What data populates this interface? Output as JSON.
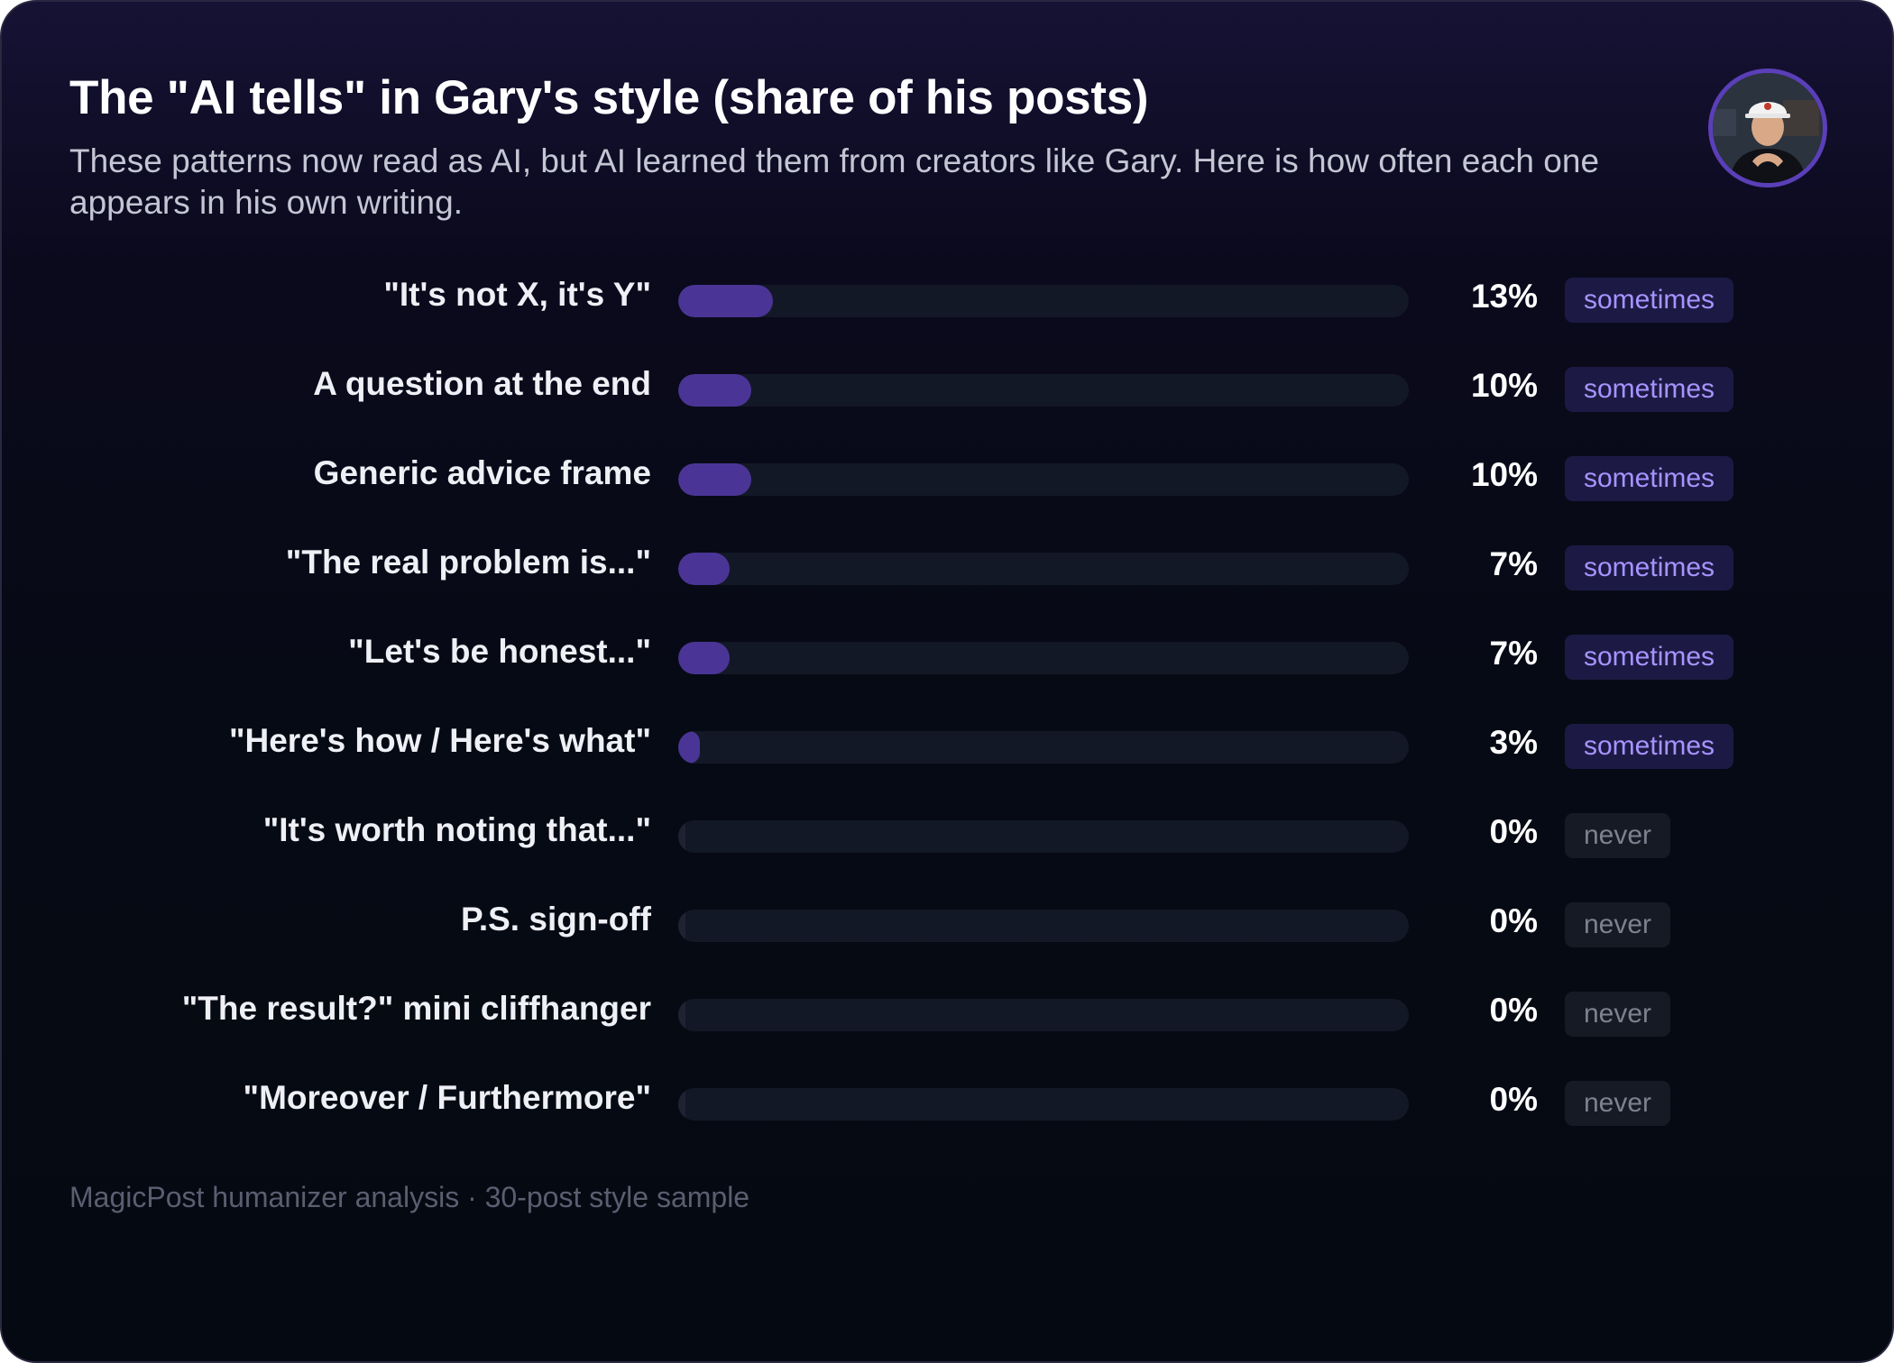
{
  "header": {
    "title": "The \"AI tells\" in Gary's style (share of his posts)",
    "subtitle": "These patterns now read as AI, but AI learned them from creators like Gary. Here is how often each one appears in his own writing."
  },
  "colors": {
    "bar_fill": "#4a3596",
    "track": "#131826",
    "badge_sometimes_text": "#a793ff",
    "badge_never_text": "#7d8190",
    "avatar_border": "#5a3fb8"
  },
  "chart_data": {
    "type": "bar",
    "orientation": "horizontal",
    "title": "The \"AI tells\" in Gary's style (share of his posts)",
    "xlabel": "",
    "ylabel": "",
    "xlim": [
      0,
      100
    ],
    "unit": "%",
    "categories": [
      "\"It's not X, it's Y\"",
      "A question at the end",
      "Generic advice frame",
      "\"The real problem is...\"",
      "\"Let's be honest...\"",
      "\"Here's how / Here's what\"",
      "\"It's worth noting that...\"",
      "P.S. sign-off",
      "\"The result?\" mini cliffhanger",
      "\"Moreover / Furthermore\""
    ],
    "values": [
      13,
      10,
      10,
      7,
      7,
      3,
      0,
      0,
      0,
      0
    ],
    "value_labels": [
      "13%",
      "10%",
      "10%",
      "7%",
      "7%",
      "3%",
      "0%",
      "0%",
      "0%",
      "0%"
    ],
    "badges": [
      "sometimes",
      "sometimes",
      "sometimes",
      "sometimes",
      "sometimes",
      "sometimes",
      "never",
      "never",
      "never",
      "never"
    ]
  },
  "footer": {
    "source": "MagicPost humanizer analysis · 30-post style sample"
  }
}
